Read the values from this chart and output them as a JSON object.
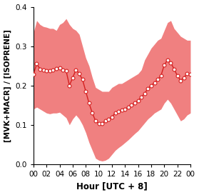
{
  "hours": [
    0.0,
    0.5,
    1.0,
    1.5,
    2.0,
    2.5,
    3.0,
    3.5,
    4.0,
    4.5,
    5.0,
    5.5,
    6.0,
    6.5,
    7.0,
    7.5,
    8.0,
    8.5,
    9.0,
    9.5,
    10.0,
    10.5,
    11.0,
    11.5,
    12.0,
    12.5,
    13.0,
    13.5,
    14.0,
    14.5,
    15.0,
    15.5,
    16.0,
    16.5,
    17.0,
    17.5,
    18.0,
    18.5,
    19.0,
    19.5,
    20.0,
    20.5,
    21.0,
    21.5,
    22.0,
    22.5,
    23.0,
    23.5,
    24.0
  ],
  "mean": [
    0.228,
    0.255,
    0.242,
    0.24,
    0.238,
    0.237,
    0.24,
    0.243,
    0.245,
    0.24,
    0.237,
    0.2,
    0.22,
    0.24,
    0.23,
    0.215,
    0.185,
    0.155,
    0.13,
    0.11,
    0.103,
    0.103,
    0.11,
    0.115,
    0.12,
    0.13,
    0.135,
    0.138,
    0.14,
    0.145,
    0.15,
    0.155,
    0.162,
    0.17,
    0.18,
    0.192,
    0.2,
    0.207,
    0.215,
    0.225,
    0.252,
    0.265,
    0.258,
    0.242,
    0.225,
    0.213,
    0.22,
    0.23,
    0.228
  ],
  "upper": [
    0.335,
    0.365,
    0.355,
    0.35,
    0.348,
    0.345,
    0.345,
    0.34,
    0.355,
    0.36,
    0.37,
    0.355,
    0.345,
    0.34,
    0.33,
    0.3,
    0.27,
    0.25,
    0.22,
    0.195,
    0.19,
    0.185,
    0.185,
    0.185,
    0.195,
    0.2,
    0.205,
    0.205,
    0.21,
    0.215,
    0.22,
    0.225,
    0.23,
    0.24,
    0.265,
    0.28,
    0.295,
    0.305,
    0.315,
    0.32,
    0.34,
    0.36,
    0.365,
    0.345,
    0.335,
    0.325,
    0.32,
    0.315,
    0.315
  ],
  "lower": [
    0.14,
    0.145,
    0.14,
    0.135,
    0.13,
    0.128,
    0.13,
    0.13,
    0.132,
    0.125,
    0.118,
    0.1,
    0.115,
    0.125,
    0.115,
    0.1,
    0.08,
    0.055,
    0.035,
    0.015,
    0.01,
    0.008,
    0.01,
    0.015,
    0.025,
    0.035,
    0.042,
    0.048,
    0.055,
    0.062,
    0.07,
    0.078,
    0.085,
    0.095,
    0.105,
    0.115,
    0.122,
    0.13,
    0.135,
    0.14,
    0.155,
    0.165,
    0.155,
    0.14,
    0.125,
    0.11,
    0.115,
    0.125,
    0.13
  ],
  "line_color": "#d42020",
  "fill_color": "#f08080",
  "marker_face": "#ffffff",
  "marker_edge": "#d42020",
  "xlabel": "Hour [UTC + 8]",
  "ylabel": "[MVK+MACR] / [ISOPRENE]",
  "xlim": [
    0,
    24
  ],
  "ylim": [
    0.0,
    0.4
  ],
  "xtick_labels": [
    "00",
    "02",
    "04",
    "06",
    "08",
    "10",
    "12",
    "14",
    "16",
    "18",
    "20",
    "22",
    "00"
  ],
  "xtick_positions": [
    0,
    2,
    4,
    6,
    8,
    10,
    12,
    14,
    16,
    18,
    20,
    22,
    24
  ],
  "ytick_positions": [
    0.0,
    0.1,
    0.2,
    0.3,
    0.4
  ],
  "ytick_labels": [
    "0.0",
    "0.1",
    "0.2",
    "0.3",
    "0.4"
  ]
}
